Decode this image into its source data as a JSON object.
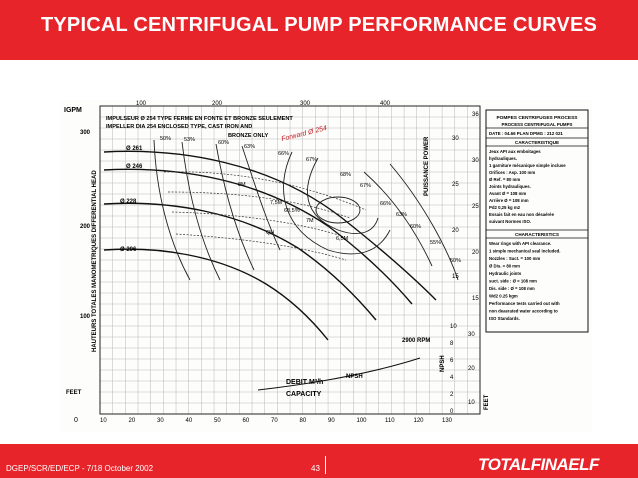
{
  "slide": {
    "title": "TYPICAL CENTRIFUGAL PUMP PERFORMANCE CURVES",
    "footer": "DGEP/SCR/ED/ECP -  7/18 October 2002",
    "page_number": "43",
    "logo": "TOTALFINAELF",
    "colors": {
      "band": "#e8242b",
      "paper": "#fdfdfb",
      "ink": "#111111"
    }
  },
  "chart": {
    "top_axis": {
      "unit": "IGPM",
      "ticks": [
        "100",
        "200",
        "300",
        "400"
      ]
    },
    "bottom_axis": {
      "unit": "0",
      "ticks": [
        "10",
        "20",
        "30",
        "40",
        "50",
        "60",
        "70",
        "80",
        "90",
        "100",
        "110",
        "120",
        "130"
      ]
    },
    "left_axis": {
      "unit_top": "FEET",
      "unit_bottom": "FEET",
      "ticks": [
        "300",
        "200",
        "100",
        "10"
      ],
      "label_main": "HAUTEURS TOTALES MANOMETRIQUES  DIFFERENTIAL HEAD"
    },
    "power_axis": {
      "label": "PUISSANCE POWER",
      "ticks": [
        "30",
        "25",
        "20",
        "15"
      ],
      "ticks_right": [
        "36",
        "30",
        "25",
        "20",
        "15"
      ]
    },
    "npsh_axis": {
      "label": "NPSH",
      "ticks": [
        "10",
        "8",
        "6",
        "4",
        "2",
        "0"
      ],
      "right": "FEET",
      "ticks_right": [
        "30",
        "20",
        "10"
      ]
    },
    "note_lines": [
      "IMPULSEUR Ø 254 TYPE FERME EN FONTE ET BRONZE SEULEMENT",
      "IMPELLER DIA 254 ENCLOSED TYPE, CAST IRON AND",
      "BRONZE ONLY"
    ],
    "handwritten": "Forward Ø 254",
    "impeller_labels": [
      "Ø 261",
      "Ø 246",
      "Ø 228",
      "Ø 206"
    ],
    "efficiency_labels": [
      "50%",
      "53%",
      "60%",
      "63%",
      "66%",
      "67%",
      "68%",
      "67%",
      "66%",
      "63%",
      "60%",
      "55%",
      "50%",
      "68.5%"
    ],
    "power_labels": [
      "8M",
      "7,5M",
      "7M",
      "6,5M",
      "QH"
    ],
    "rpm": "2900 RPM",
    "npsh_curve": "NPSH",
    "flow_label": "DEBIT M³/h",
    "capacity_label": "CAPACITY",
    "datasheet": {
      "title": "POMPES CENTRIFUGES PROCESS",
      "subtitle": "PROCESS CENTRIFUGAL PUMPS",
      "date": "DATE : 04.66  PLAN DPMG : 212 021",
      "fr_header": "CARACTERISTIQUE",
      "fr_lines": [
        "Jeux API aux emboitages",
        "hydrauliques.",
        "1 garniture mécanique simple incluse",
        "Orifices : Asp. 100 mm",
        "Ø Ref. = 80 mm",
        "Joints hydrauliques.",
        "Avant Ø = 108 mm",
        "Arrière Ø = 108 mm",
        "Pd2 0,25 kg m2",
        "Essais fait en eau non désaérée",
        "suivant Normes ISO."
      ],
      "en_header": "CHARACTERISTICS",
      "en_lines": [
        "Wear rings with API clearance.",
        "1 simple mechanical seal included.",
        "Nozzles : Suct. = 100 mm",
        "Ø Dis. = 80 mm",
        "Hydraulic joints",
        "suct. side : Ø = 108 mm",
        "Dis. side : Ø = 108 mm",
        "Wd2 0.25 kgm",
        "Performance tests carried out with",
        "non deaerated water according to",
        "ISO Standards."
      ]
    }
  }
}
